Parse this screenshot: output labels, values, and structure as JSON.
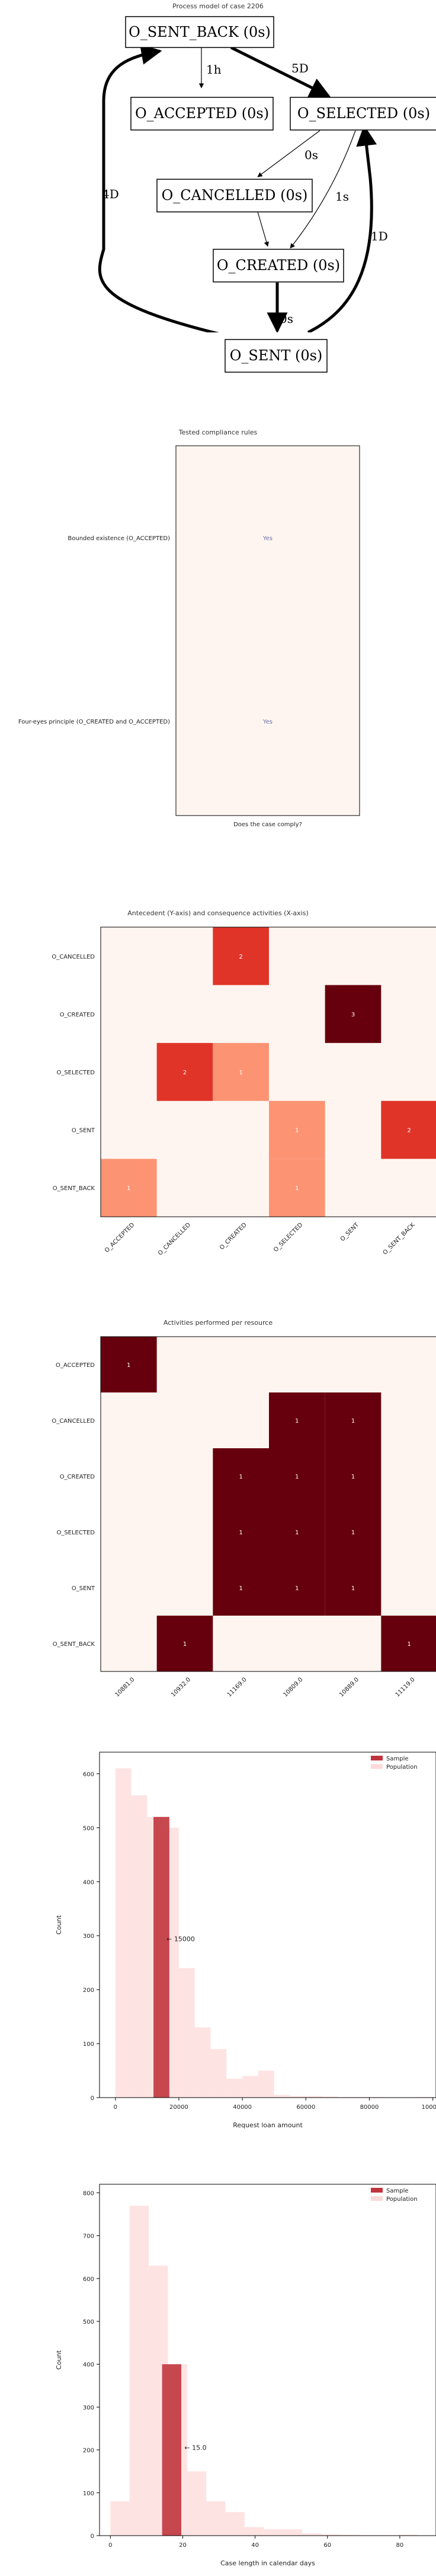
{
  "process_model": {
    "title": "Process model of case 2206",
    "nodes": [
      {
        "id": "O_SENT_BACK",
        "label": "O_SENT_BACK (0s)"
      },
      {
        "id": "O_ACCEPTED",
        "label": "O_ACCEPTED (0s)"
      },
      {
        "id": "O_SELECTED",
        "label": "O_SELECTED (0s)"
      },
      {
        "id": "O_CANCELLED",
        "label": "O_CANCELLED (0s)"
      },
      {
        "id": "O_CREATED",
        "label": "O_CREATED (0s)"
      },
      {
        "id": "O_SENT",
        "label": "O_SENT (0s)"
      }
    ],
    "edges": [
      {
        "from": "O_SENT_BACK",
        "to": "O_ACCEPTED",
        "label": "1h",
        "bold": false
      },
      {
        "from": "O_SENT_BACK",
        "to": "O_SELECTED",
        "label": "5D",
        "bold": true
      },
      {
        "from": "O_SELECTED",
        "to": "O_CANCELLED",
        "label": "0s",
        "bold": false
      },
      {
        "from": "O_SELECTED",
        "to": "O_CREATED",
        "label": "1s",
        "bold": false
      },
      {
        "from": "O_CANCELLED",
        "to": "O_CREATED",
        "label": "1s",
        "bold": false
      },
      {
        "from": "O_CREATED",
        "to": "O_SENT",
        "label": "0s",
        "bold": true
      },
      {
        "from": "O_SENT",
        "to": "O_SENT_BACK",
        "label": "4D",
        "bold": true
      },
      {
        "from": "O_SENT",
        "to": "O_SELECTED",
        "label": "1D",
        "bold": true
      }
    ]
  },
  "chart_data": [
    {
      "type": "table",
      "title": "Tested compliance rules",
      "xlabel": "Does the case comply?",
      "rows": [
        "Bounded existence (O_ACCEPTED)",
        "Four-eyes principle (O_CREATED and O_ACCEPTED)"
      ],
      "values": [
        "Yes",
        "Yes"
      ]
    },
    {
      "type": "heatmap",
      "title": "Antecedent (Y-axis) and consequence activities (X-axis)",
      "ylabels": [
        "O_CANCELLED",
        "O_CREATED",
        "O_SELECTED",
        "O_SENT",
        "O_SENT_BACK"
      ],
      "xlabels": [
        "O_ACCEPTED",
        "O_CANCELLED",
        "O_CREATED",
        "O_SELECTED",
        "O_SENT",
        "O_SENT_BACK"
      ],
      "matrix": [
        [
          0,
          0,
          2,
          0,
          0,
          0
        ],
        [
          0,
          0,
          0,
          0,
          3,
          0
        ],
        [
          0,
          2,
          1,
          0,
          0,
          0
        ],
        [
          0,
          0,
          0,
          1,
          0,
          2
        ],
        [
          1,
          0,
          0,
          1,
          0,
          0
        ]
      ],
      "max": 3
    },
    {
      "type": "heatmap",
      "title": "Activities performed per resource",
      "ylabels": [
        "O_ACCEPTED",
        "O_CANCELLED",
        "O_CREATED",
        "O_SELECTED",
        "O_SENT",
        "O_SENT_BACK"
      ],
      "xlabels": [
        "10881.0",
        "10932.0",
        "11169.0",
        "10809.0",
        "10889.0",
        "11119.0"
      ],
      "matrix": [
        [
          1,
          0,
          0,
          0,
          0,
          0
        ],
        [
          0,
          0,
          0,
          1,
          1,
          0
        ],
        [
          0,
          0,
          1,
          1,
          1,
          0
        ],
        [
          0,
          0,
          1,
          1,
          1,
          0
        ],
        [
          0,
          0,
          1,
          1,
          1,
          0
        ],
        [
          0,
          1,
          0,
          0,
          0,
          1
        ]
      ],
      "max": 1
    },
    {
      "type": "bar",
      "title": "",
      "xlabel": "Request loan amount",
      "ylabel": "Count",
      "xlim": [
        -5000,
        101000
      ],
      "ylim": [
        0,
        640
      ],
      "xticks": [
        0,
        20000,
        40000,
        60000,
        80000,
        100000
      ],
      "yticks": [
        0,
        100,
        200,
        300,
        400,
        500,
        600
      ],
      "bin_width": 5000,
      "series": [
        {
          "name": "Population",
          "bin_starts": [
            0,
            5000,
            10000,
            15000,
            20000,
            25000,
            30000,
            35000,
            40000,
            45000,
            50000,
            55000,
            60000,
            65000,
            70000,
            75000,
            80000,
            85000,
            90000,
            95000
          ],
          "values": [
            610,
            560,
            520,
            500,
            240,
            130,
            90,
            35,
            40,
            50,
            5,
            3,
            3,
            2,
            1,
            1,
            1,
            0,
            0,
            1
          ]
        },
        {
          "name": "Sample",
          "bin_starts": [
            12000
          ],
          "values": [
            520
          ]
        }
      ],
      "annotation": {
        "text": "← 15000",
        "x": 15000,
        "y": 290
      },
      "legend": "top-right"
    },
    {
      "type": "bar",
      "title": "",
      "xlabel": "Case length in calendar days",
      "ylabel": "Count",
      "xlim": [
        -3,
        90
      ],
      "ylim": [
        0,
        820
      ],
      "xticks": [
        0,
        20,
        40,
        60,
        80
      ],
      "yticks": [
        0,
        100,
        200,
        300,
        400,
        500,
        600,
        700,
        800
      ],
      "bin_width": 5.3,
      "series": [
        {
          "name": "Population",
          "bin_starts": [
            0,
            5.3,
            10.6,
            15.9,
            21.2,
            26.5,
            31.8,
            37.1,
            42.4,
            47.7,
            53,
            58.3,
            63.6,
            68.9,
            74.2,
            79.5
          ],
          "values": [
            80,
            770,
            630,
            400,
            150,
            80,
            55,
            20,
            15,
            15,
            5,
            3,
            2,
            1,
            1,
            2
          ]
        },
        {
          "name": "Sample",
          "bin_starts": [
            14.3
          ],
          "values": [
            400
          ]
        }
      ],
      "annotation": {
        "text": "← 15.0",
        "x": 19.5,
        "y": 200
      },
      "legend": "top-right"
    }
  ],
  "colors": {
    "heat_low": "#fff5f0",
    "heat_mid": "#fc9272",
    "heat_mid2": "#e03328",
    "heat_high": "#67000d",
    "pop": "#fdd9d9",
    "sample": "#c0353d",
    "yes_text": "#6b6fae"
  }
}
